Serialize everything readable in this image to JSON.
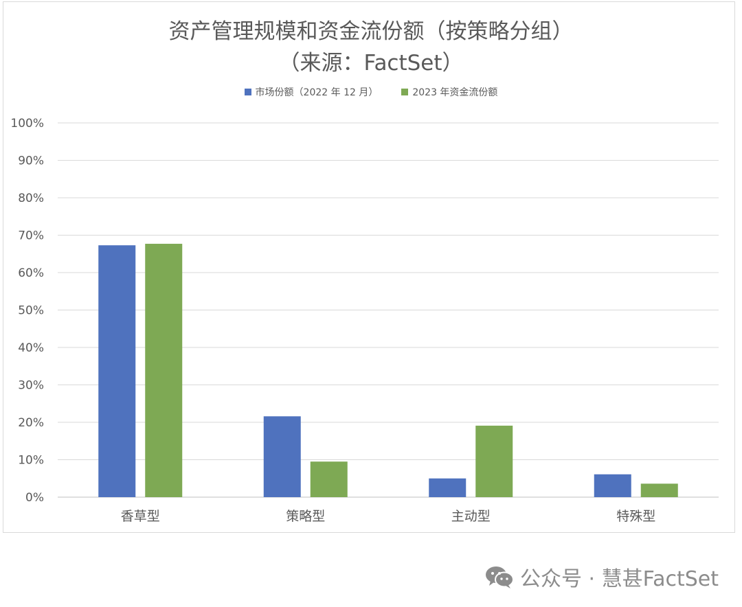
{
  "chart_data": {
    "type": "bar",
    "title_line1": "资产管理规模和资金流份额（按策略分组）",
    "title_line2": "（来源：FactSet）",
    "categories": [
      "香草型",
      "策略型",
      "主动型",
      "特殊型"
    ],
    "series": [
      {
        "name": "市场份额（2022 年 12 月）",
        "color": "#4f72be",
        "values": [
          67.3,
          21.6,
          5.0,
          6.1
        ]
      },
      {
        "name": "2023 年资金流份额",
        "color": "#7ea954",
        "values": [
          67.7,
          9.5,
          19.1,
          3.6
        ]
      }
    ],
    "yticks": [
      "0%",
      "10%",
      "20%",
      "30%",
      "40%",
      "50%",
      "60%",
      "70%",
      "80%",
      "90%",
      "100%"
    ],
    "ylim": [
      0,
      100
    ],
    "grid": true,
    "legend_position": "top"
  },
  "watermark": {
    "icon": "wechat-icon",
    "text": "公众号 · 慧甚FactSet"
  }
}
